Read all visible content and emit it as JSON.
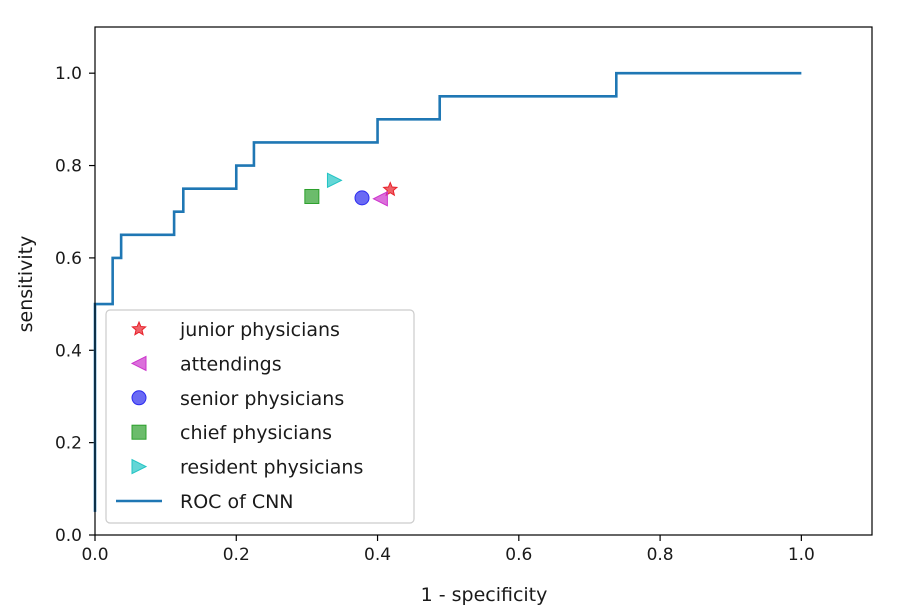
{
  "chart_data": {
    "type": "line",
    "title": "",
    "xlabel": "1 - specificity",
    "ylabel": "sensitivity",
    "xlim": [
      0.0,
      1.1
    ],
    "ylim": [
      0.0,
      1.1
    ],
    "xticks": [
      "0.0",
      "0.2",
      "0.4",
      "0.6",
      "0.8",
      "1.0"
    ],
    "yticks": [
      "0.0",
      "0.2",
      "0.4",
      "0.6",
      "0.8",
      "1.0"
    ],
    "grid": false,
    "legend_position": "lower-left",
    "series": [
      {
        "name": "ROC of CNN",
        "kind": "line",
        "color": "#1f77b4",
        "x": [
          0.0,
          0.0,
          0.025,
          0.025,
          0.037,
          0.037,
          0.112,
          0.112,
          0.125,
          0.125,
          0.2,
          0.2,
          0.225,
          0.225,
          0.4,
          0.4,
          0.488,
          0.488,
          0.738,
          0.738,
          1.0
        ],
        "y": [
          0.05,
          0.5,
          0.5,
          0.6,
          0.6,
          0.65,
          0.65,
          0.7,
          0.7,
          0.75,
          0.75,
          0.8,
          0.8,
          0.85,
          0.85,
          0.9,
          0.9,
          0.95,
          0.95,
          1.0,
          1.0
        ]
      }
    ],
    "points": [
      {
        "name": "junior physicians",
        "marker": "star",
        "color": "#e8202a",
        "x": 0.418,
        "y": 0.748
      },
      {
        "name": "attendings",
        "marker": "triangle-left",
        "color": "#cc33cc",
        "x": 0.404,
        "y": 0.728
      },
      {
        "name": "senior physicians",
        "marker": "circle",
        "color": "#2b2bf0",
        "x": 0.378,
        "y": 0.73
      },
      {
        "name": "chief physicians",
        "marker": "square",
        "color": "#2ca02c",
        "x": 0.307,
        "y": 0.733
      },
      {
        "name": "resident physicians",
        "marker": "triangle-right",
        "color": "#22c4c4",
        "x": 0.339,
        "y": 0.768
      }
    ],
    "legend": [
      "junior physicians",
      "attendings",
      "senior physicians",
      "chief physicians",
      "resident physicians",
      "ROC of CNN"
    ]
  }
}
